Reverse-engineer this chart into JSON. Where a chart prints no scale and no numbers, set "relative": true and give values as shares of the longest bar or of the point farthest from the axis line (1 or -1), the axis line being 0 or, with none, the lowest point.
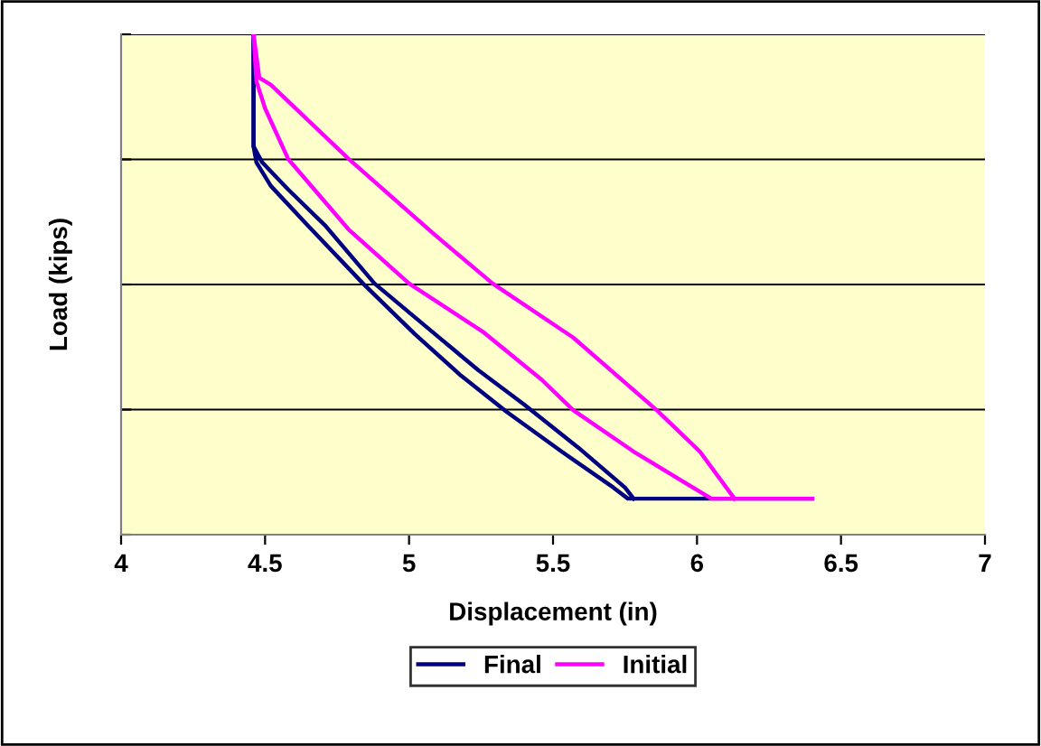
{
  "chart_data": {
    "type": "line",
    "relative": true,
    "xlabel": "Displacement (in)",
    "ylabel": "Load (kips)",
    "xlim": [
      4,
      7
    ],
    "xticks": [
      4,
      {
        "value": 4.5,
        "label": "4.5"
      },
      5,
      {
        "value": 5.5,
        "label": "5.5"
      },
      6,
      {
        "value": 6.5,
        "label": "6.5"
      },
      7
    ],
    "grid": "y",
    "legend": "bottom",
    "marker": "none",
    "line_style": "solid",
    "series": [
      {
        "name": "Final",
        "color": "#000080",
        "x": [
          4.46,
          4.46,
          4.47,
          4.52,
          4.65,
          4.84,
          5.02,
          5.18,
          5.34,
          5.53,
          5.71,
          5.76,
          6.4
        ],
        "values": [
          1.0,
          0.776,
          0.744,
          0.697,
          0.617,
          0.502,
          0.401,
          0.318,
          0.245,
          0.166,
          0.094,
          0.072,
          0.072
        ]
      },
      {
        "color": "#000080",
        "x": [
          4.46,
          4.46,
          4.49,
          4.58,
          4.71,
          4.88,
          5.09,
          5.24,
          5.4,
          5.59,
          5.75,
          5.78
        ],
        "values": [
          1.0,
          0.776,
          0.744,
          0.69,
          0.617,
          0.502,
          0.401,
          0.329,
          0.26,
          0.173,
          0.094,
          0.072
        ]
      },
      {
        "name": "Initial",
        "color": "#ff00ff",
        "x": [
          4.46,
          4.47,
          4.5,
          4.58,
          4.79,
          5.0,
          5.26,
          5.46,
          5.57,
          5.78,
          6.05,
          6.4
        ],
        "values": [
          1.0,
          0.906,
          0.852,
          0.751,
          0.61,
          0.502,
          0.404,
          0.31,
          0.249,
          0.166,
          0.072,
          0.072
        ]
      },
      {
        "color": "#ff00ff",
        "x": [
          4.46,
          4.48,
          4.52,
          4.79,
          5.09,
          5.29,
          5.57,
          5.86,
          6.01,
          6.13
        ],
        "values": [
          1.0,
          0.913,
          0.899,
          0.751,
          0.599,
          0.502,
          0.394,
          0.249,
          0.166,
          0.072
        ]
      }
    ]
  }
}
